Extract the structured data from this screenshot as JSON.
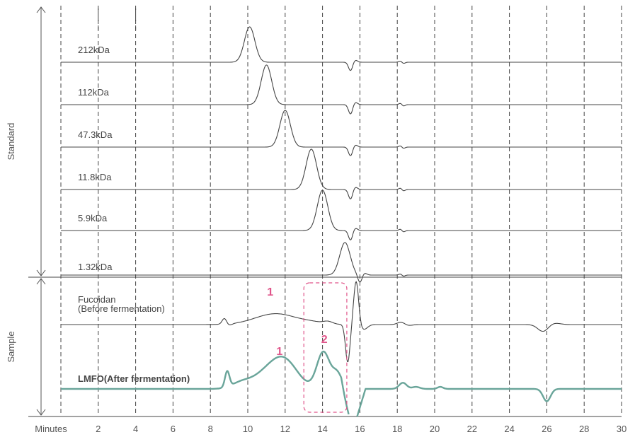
{
  "chart_data": {
    "type": "line",
    "title": "",
    "xlabel": "Minutes",
    "ylabel": "",
    "xlim": [
      0,
      30
    ],
    "x_ticks": [
      2,
      4,
      6,
      8,
      10,
      12,
      14,
      16,
      18,
      20,
      22,
      24,
      26,
      28,
      30
    ],
    "grid": "vertical dashed lines at every 2 minutes",
    "groups": [
      {
        "name": "Standard",
        "series": [
          "212kDa",
          "112kDa",
          "47.3kDa",
          "11.8kDa",
          "5.9kDa",
          "1.32kDa"
        ]
      },
      {
        "name": "Sample",
        "series": [
          "Fucoidan (Before fermentation)",
          "LMFO(After fermentation)"
        ]
      }
    ],
    "series": [
      {
        "name": "212kDa",
        "label_lines": [
          "212kDa"
        ],
        "color": "#444444",
        "peaks": [
          {
            "x": 10.1,
            "height": 1.0
          }
        ],
        "solvent_dip_x": 15.5
      },
      {
        "name": "112kDa",
        "label_lines": [
          "112kDa"
        ],
        "color": "#444444",
        "peaks": [
          {
            "x": 11.0,
            "height": 1.0
          }
        ],
        "solvent_dip_x": 15.5
      },
      {
        "name": "47.3kDa",
        "label_lines": [
          "47.3kDa"
        ],
        "color": "#444444",
        "peaks": [
          {
            "x": 12.0,
            "height": 1.0
          }
        ],
        "solvent_dip_x": 15.5
      },
      {
        "name": "11.8kDa",
        "label_lines": [
          "11.8kDa"
        ],
        "color": "#444444",
        "peaks": [
          {
            "x": 13.4,
            "height": 1.0
          }
        ],
        "solvent_dip_x": 15.5
      },
      {
        "name": "5.9kDa",
        "label_lines": [
          "5.9kDa"
        ],
        "color": "#444444",
        "peaks": [
          {
            "x": 14.0,
            "height": 1.0
          }
        ],
        "solvent_dip_x": 15.5
      },
      {
        "name": "1.32kDa",
        "label_lines": [
          "1.32kDa"
        ],
        "color": "#444444",
        "peaks": [
          {
            "x": 15.2,
            "height": 1.0
          }
        ],
        "solvent_dip_x": 16.0
      },
      {
        "name": "Fucoidan (Before fermentation)",
        "label_lines": [
          "Fucoidan",
          "(Before fermentation)"
        ],
        "color": "#444444",
        "peaks": [
          {
            "x": 8.8,
            "height": 0.3
          },
          {
            "x": 11.5,
            "height": 0.55
          },
          {
            "x": 14.0,
            "height": 0.1
          },
          {
            "x": 18.2,
            "height": 0.1
          }
        ],
        "dips": [
          {
            "x": 25.8,
            "depth": 0.35
          }
        ]
      },
      {
        "name": "LMFO(After fermentation)",
        "label_lines": [
          "LMFO(After fermentation)"
        ],
        "color": "#6aa59a",
        "peaks": [
          {
            "x": 8.9,
            "height": 0.35
          },
          {
            "x": 12.0,
            "height": 0.6
          },
          {
            "x": 14.0,
            "height": 0.9
          },
          {
            "x": 18.4,
            "height": 0.15
          }
        ],
        "dips": [
          {
            "x": 26.0,
            "depth": 0.3
          }
        ]
      }
    ],
    "annotations": [
      {
        "text": "1",
        "x": 11.2,
        "series": "Fucoidan (Before fermentation)",
        "color": "#e0558a"
      },
      {
        "text": "1",
        "x": 11.7,
        "series": "LMFO(After fermentation)",
        "color": "#e0558a"
      },
      {
        "text": "2",
        "x": 14.1,
        "series": "LMFO(After fermentation)",
        "color": "#e0558a"
      }
    ],
    "highlight_box": {
      "x_range": [
        13.0,
        15.3
      ],
      "color": "#e0558a",
      "style": "dashed"
    },
    "section_labels": [
      "Standard",
      "Sample"
    ]
  }
}
